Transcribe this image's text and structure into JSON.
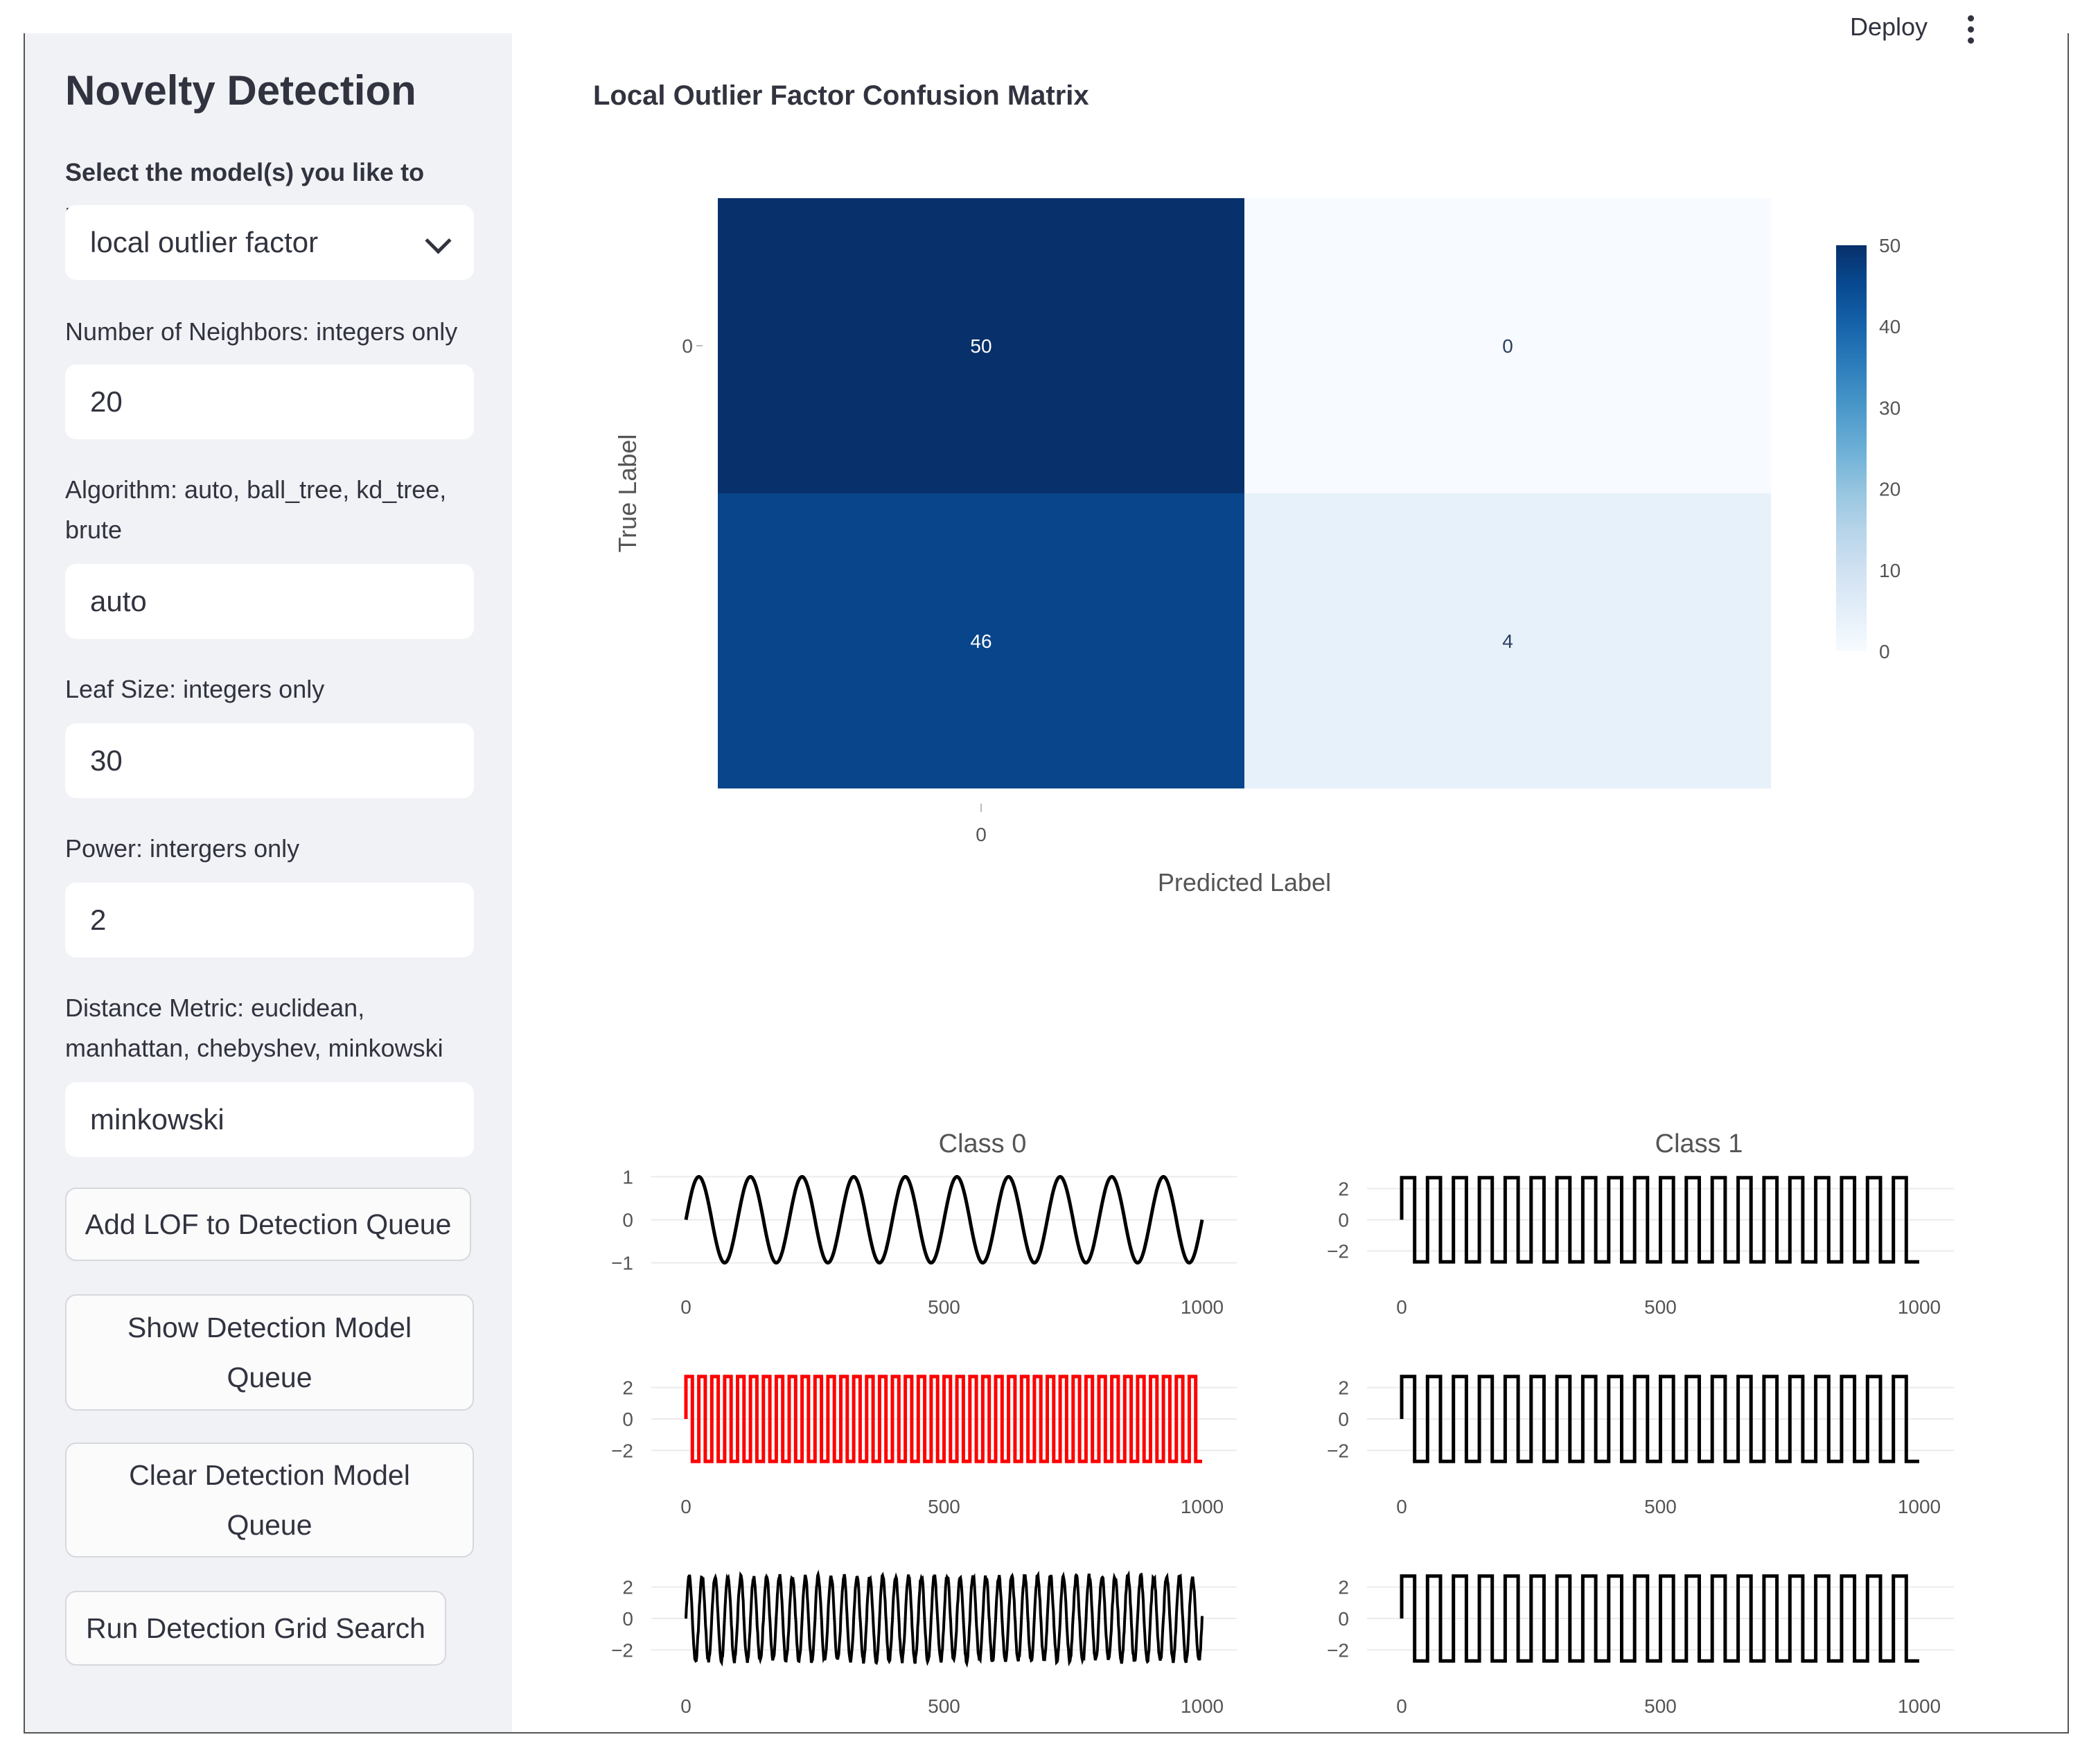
{
  "sidebar": {
    "title": "Novelty Detection",
    "model_label": "Select the model(s) you like to use.",
    "model_value": "local outlier factor",
    "fields": [
      {
        "label": "Number of Neighbors: integers only",
        "value": "20"
      },
      {
        "label": "Algorithm: auto, ball_tree, kd_tree, brute",
        "value": "auto"
      },
      {
        "label": "Leaf Size: integers only",
        "value": "30"
      },
      {
        "label": "Power: intergers only",
        "value": "2"
      },
      {
        "label": "Distance Metric: euclidean, manhattan, chebyshev, minkowski",
        "value": "minkowski"
      }
    ],
    "buttons": {
      "add": "Add LOF to Detection Queue",
      "show": "Show Detection Model Queue",
      "clear": "Clear Detection Model Queue",
      "run": "Run Detection Grid Search"
    }
  },
  "header": {
    "deploy_label": "Deploy",
    "menu_icon": "kebab-menu-icon"
  },
  "main": {
    "chart_title": "Local Outlier Factor Confusion Matrix"
  },
  "chart_data": [
    {
      "type": "heatmap",
      "title": "Local Outlier Factor Confusion Matrix",
      "xlabel": "Predicted Label",
      "ylabel": "True Label",
      "x_tick_labels": [
        "0"
      ],
      "y_tick_labels": [
        "0"
      ],
      "z": [
        [
          50,
          0
        ],
        [
          46,
          4
        ]
      ],
      "colorscale": "Blues",
      "colorbar_ticks": [
        "50",
        "40",
        "30",
        "20",
        "10",
        "0"
      ],
      "zlim": [
        0,
        50
      ]
    },
    {
      "type": "line",
      "title": "Class 0",
      "waveform": "sine",
      "cycles": 10,
      "x_range": [
        0,
        1000
      ],
      "ylim": [
        -1,
        1
      ],
      "y_tick_labels": [
        "1",
        "0",
        "−1"
      ],
      "x_tick_labels": [
        "0",
        "500",
        "1000"
      ],
      "color": "#000000"
    },
    {
      "type": "line",
      "title": "Class 1",
      "waveform": "square",
      "cycles": 20,
      "x_range": [
        0,
        1000
      ],
      "ylim": [
        -3,
        3
      ],
      "y_tick_labels": [
        "2",
        "0",
        "−2"
      ],
      "x_tick_labels": [
        "0",
        "500",
        "1000"
      ],
      "color": "#000000"
    },
    {
      "type": "line",
      "title": "",
      "waveform": "square",
      "cycles": 40,
      "x_range": [
        0,
        1000
      ],
      "ylim": [
        -3,
        3
      ],
      "y_tick_labels": [
        "2",
        "0",
        "−2"
      ],
      "x_tick_labels": [
        "0",
        "500",
        "1000"
      ],
      "color": "#ff0000"
    },
    {
      "type": "line",
      "title": "",
      "waveform": "square",
      "cycles": 20,
      "x_range": [
        0,
        1000
      ],
      "ylim": [
        -3,
        3
      ],
      "y_tick_labels": [
        "2",
        "0",
        "−2"
      ],
      "x_tick_labels": [
        "0",
        "500",
        "1000"
      ],
      "color": "#000000"
    },
    {
      "type": "line",
      "title": "",
      "waveform": "noisy-sine",
      "cycles": 40,
      "x_range": [
        0,
        1000
      ],
      "ylim": [
        -3,
        3
      ],
      "y_tick_labels": [
        "2",
        "0",
        "−2"
      ],
      "x_tick_labels": [
        "0",
        "500",
        "1000"
      ],
      "color": "#000000"
    },
    {
      "type": "line",
      "title": "",
      "waveform": "square",
      "cycles": 20,
      "x_range": [
        0,
        1000
      ],
      "ylim": [
        -3,
        3
      ],
      "y_tick_labels": [
        "2",
        "0",
        "−2"
      ],
      "x_tick_labels": [
        "0",
        "500",
        "1000"
      ],
      "color": "#000000"
    }
  ]
}
